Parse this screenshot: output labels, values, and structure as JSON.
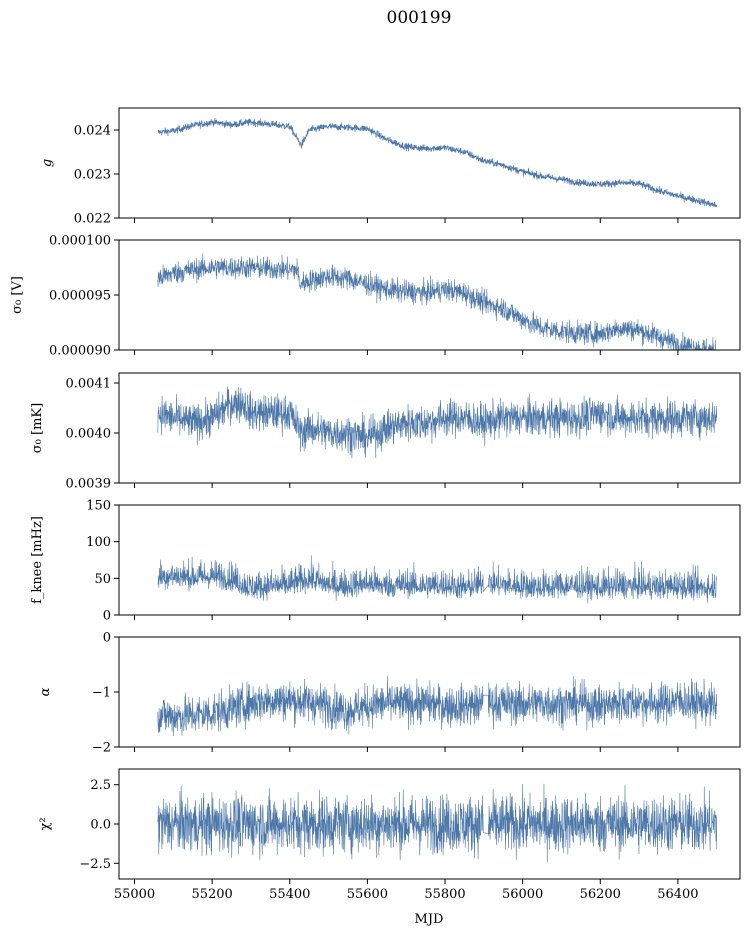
{
  "figure": {
    "title": "000199",
    "xlabel": "MJD",
    "line_color": "#4c77a8"
  },
  "chart_data": [
    {
      "type": "line",
      "name": "g",
      "ylabel": "g",
      "xlim": [
        54960,
        56560
      ],
      "ylim": [
        0.022,
        0.0245
      ],
      "yticks": [
        0.022,
        0.023,
        0.024
      ],
      "ytick_labels": [
        "0.022",
        "0.023",
        "0.024"
      ],
      "series": [
        {
          "x": [
            55060,
            55100,
            55150,
            55200,
            55250,
            55300,
            55350,
            55400,
            55430,
            55450,
            55500,
            55550,
            55600,
            55650,
            55700,
            55750,
            55800,
            55850,
            55900,
            55950,
            56000,
            56050,
            56100,
            56150,
            56200,
            56250,
            56300,
            56350,
            56400,
            56450,
            56500
          ],
          "y": [
            0.02395,
            0.02398,
            0.0241,
            0.02418,
            0.02412,
            0.02418,
            0.02413,
            0.02408,
            0.02365,
            0.024,
            0.02408,
            0.02406,
            0.02403,
            0.02378,
            0.02362,
            0.02358,
            0.0236,
            0.0235,
            0.0233,
            0.0232,
            0.02305,
            0.02295,
            0.02288,
            0.0228,
            0.02277,
            0.0228,
            0.02278,
            0.02262,
            0.0225,
            0.0224,
            0.02228
          ]
        }
      ],
      "noise": 4e-05
    },
    {
      "type": "line",
      "name": "sigma0_V",
      "ylabel": "σ₀ [V]",
      "xlim": [
        54960,
        56560
      ],
      "ylim": [
        9e-05,
        0.0001
      ],
      "yticks": [
        9e-05,
        9.5e-05,
        0.0001
      ],
      "ytick_labels": [
        "0.000090",
        "0.000095",
        "0.000100"
      ],
      "series": [
        {
          "x": [
            55060,
            55100,
            55150,
            55200,
            55250,
            55300,
            55350,
            55400,
            55420,
            55425,
            55450,
            55500,
            55550,
            55600,
            55650,
            55700,
            55750,
            55800,
            55850,
            55900,
            55950,
            56000,
            56050,
            56100,
            56150,
            56200,
            56250,
            56300,
            56350,
            56400,
            56450,
            56500
          ],
          "y": [
            9.65e-05,
            9.7e-05,
            9.73e-05,
            9.75e-05,
            9.75e-05,
            9.75e-05,
            9.74e-05,
            9.73e-05,
            9.73e-05,
            9.6e-05,
            9.63e-05,
            9.67e-05,
            9.65e-05,
            9.6e-05,
            9.55e-05,
            9.53e-05,
            9.52e-05,
            9.55e-05,
            9.52e-05,
            9.43e-05,
            9.38e-05,
            9.28e-05,
            9.2e-05,
            9.17e-05,
            9.15e-05,
            9.15e-05,
            9.2e-05,
            9.18e-05,
            9.12e-05,
            9.05e-05,
            9.02e-05,
            8.99e-05
          ]
        }
      ],
      "noise": 5e-07
    },
    {
      "type": "line",
      "name": "sigma0_mK",
      "ylabel": "σ₀ [mK]",
      "xlim": [
        54960,
        56560
      ],
      "ylim": [
        0.0039,
        0.00412
      ],
      "yticks": [
        0.0039,
        0.004,
        0.0041
      ],
      "ytick_labels": [
        "0.0039",
        "0.0040",
        "0.0041"
      ],
      "series": [
        {
          "x": [
            55060,
            55100,
            55150,
            55200,
            55250,
            55280,
            55300,
            55350,
            55400,
            55430,
            55450,
            55500,
            55550,
            55600,
            55650,
            55700,
            55750,
            55800,
            55850,
            55900,
            55950,
            56000,
            56050,
            56100,
            56150,
            56200,
            56250,
            56300,
            56350,
            56400,
            56450,
            56500
          ],
          "y": [
            0.00404,
            0.00403,
            0.00402,
            0.00403,
            0.00406,
            0.00406,
            0.00404,
            0.00404,
            0.00404,
            0.004,
            0.00401,
            0.004,
            0.004,
            0.00399,
            0.00401,
            0.00402,
            0.00402,
            0.00403,
            0.00403,
            0.00402,
            0.00403,
            0.00403,
            0.00403,
            0.00403,
            0.00403,
            0.00404,
            0.00403,
            0.00403,
            0.00403,
            0.00403,
            0.00403,
            0.00403
          ]
        }
      ],
      "noise": 1.8e-05
    },
    {
      "type": "line",
      "name": "f_knee",
      "ylabel": "f_knee [mHz]",
      "xlim": [
        54960,
        56560
      ],
      "ylim": [
        0,
        150
      ],
      "yticks": [
        0,
        50,
        100,
        150
      ],
      "ytick_labels": [
        "0",
        "50",
        "100",
        "150"
      ],
      "series": [
        {
          "x": [
            55060,
            55100,
            55150,
            55200,
            55250,
            55300,
            55350,
            55400,
            55450,
            55500,
            55550,
            55600,
            55650,
            55700,
            55750,
            55800,
            55850,
            55900,
            55950,
            56000,
            56050,
            56100,
            56150,
            56200,
            56250,
            56300,
            56350,
            56400,
            56450,
            56500
          ],
          "y": [
            50,
            52,
            50,
            52,
            48,
            35,
            38,
            40,
            48,
            40,
            38,
            42,
            38,
            40,
            38,
            40,
            35,
            42,
            40,
            38,
            36,
            38,
            38,
            36,
            38,
            38,
            36,
            38,
            36,
            36
          ]
        }
      ],
      "noise": 12
    },
    {
      "type": "line",
      "name": "alpha",
      "ylabel": "α",
      "xlim": [
        54960,
        56560
      ],
      "ylim": [
        -2,
        0
      ],
      "yticks": [
        -2,
        -1,
        0
      ],
      "ytick_labels": [
        "−2",
        "−1",
        "0"
      ],
      "series": [
        {
          "x": [
            55060,
            55100,
            55150,
            55200,
            55250,
            55300,
            55350,
            55400,
            55450,
            55500,
            55550,
            55600,
            55650,
            55700,
            55750,
            55800,
            55850,
            55900,
            55950,
            56000,
            56050,
            56100,
            56150,
            56200,
            56250,
            56300,
            56350,
            56400,
            56450,
            56500
          ],
          "y": [
            -1.4,
            -1.45,
            -1.42,
            -1.38,
            -1.3,
            -1.2,
            -1.15,
            -1.15,
            -1.18,
            -1.25,
            -1.35,
            -1.25,
            -1.2,
            -1.22,
            -1.2,
            -1.25,
            -1.25,
            -1.22,
            -1.2,
            -1.22,
            -1.2,
            -1.22,
            -1.2,
            -1.25,
            -1.2,
            -1.18,
            -1.22,
            -1.15,
            -1.2,
            -1.25
          ]
        }
      ],
      "noise": 0.18
    },
    {
      "type": "line",
      "name": "chi2",
      "ylabel": "χ²",
      "xlim": [
        54960,
        56560
      ],
      "ylim": [
        -3.5,
        3.5
      ],
      "yticks": [
        -2.5,
        0.0,
        2.5
      ],
      "ytick_labels": [
        "−2.5",
        "0.0",
        "2.5"
      ],
      "xticks": [
        55000,
        55200,
        55400,
        55600,
        55800,
        56000,
        56200,
        56400
      ],
      "xtick_labels": [
        "55000",
        "55200",
        "55400",
        "55600",
        "55800",
        "56000",
        "56200",
        "56400"
      ],
      "series": [
        {
          "x": [
            55060,
            56500
          ],
          "y": [
            0.0,
            0.0
          ]
        }
      ],
      "noise": 0.9
    }
  ]
}
